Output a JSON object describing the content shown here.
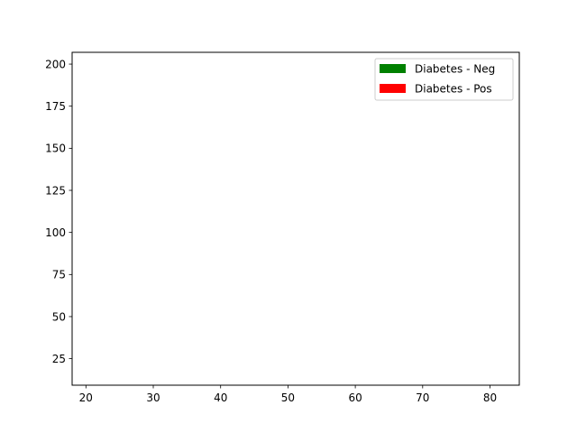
{
  "chart_data": {
    "type": "scatter",
    "title": "",
    "xlabel": "",
    "ylabel": "",
    "xlim": [
      17.95,
      84.35
    ],
    "ylim": [
      9.25,
      207.0
    ],
    "xticks": [
      20,
      30,
      40,
      50,
      60,
      70,
      80
    ],
    "yticks": [
      25,
      50,
      75,
      100,
      125,
      150,
      175,
      200
    ],
    "grid": false,
    "legend_position": "upper right",
    "series": [
      {
        "name": "Diabetes - Neg",
        "color": "#008000",
        "points": []
      },
      {
        "name": "Diabetes - Pos",
        "color": "#ff0000",
        "points": []
      }
    ]
  }
}
